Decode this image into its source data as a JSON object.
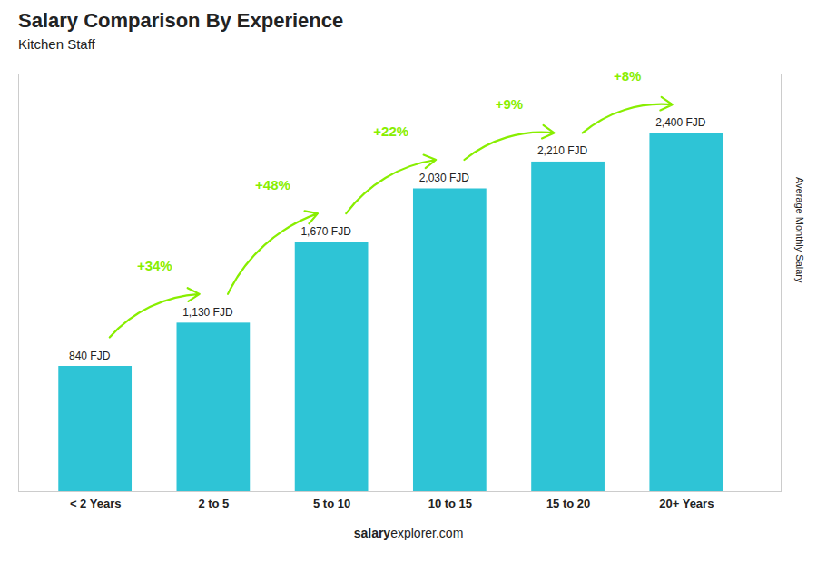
{
  "chart_data": {
    "type": "bar",
    "title": "Salary Comparison By Experience",
    "subtitle": "Kitchen Staff",
    "ylabel": "Average Monthly Salary",
    "footer": [
      "salary",
      "explorer.com"
    ],
    "categories": [
      "< 2 Years",
      "2 to 5",
      "5 to 10",
      "10 to 15",
      "15 to 20",
      "20+ Years"
    ],
    "values": [
      840,
      1130,
      1670,
      2030,
      2210,
      2400
    ],
    "value_labels": [
      "840 FJD",
      "1,130 FJD",
      "1,670 FJD",
      "2,030 FJD",
      "2,210 FJD",
      "2,400 FJD"
    ],
    "data_labels": true,
    "annotations": [
      {
        "text": "+34%",
        "color": "#88ee00"
      },
      {
        "text": "+48%",
        "color": "#88ee00"
      },
      {
        "text": "+22%",
        "color": "#88ee00"
      },
      {
        "text": "+9%",
        "color": "#88ee00"
      },
      {
        "text": "+8%",
        "color": "#88ee00"
      }
    ],
    "color": "#2ec4d6",
    "ylim": [
      0,
      2800
    ],
    "tick_labels": "x",
    "grid": false
  }
}
